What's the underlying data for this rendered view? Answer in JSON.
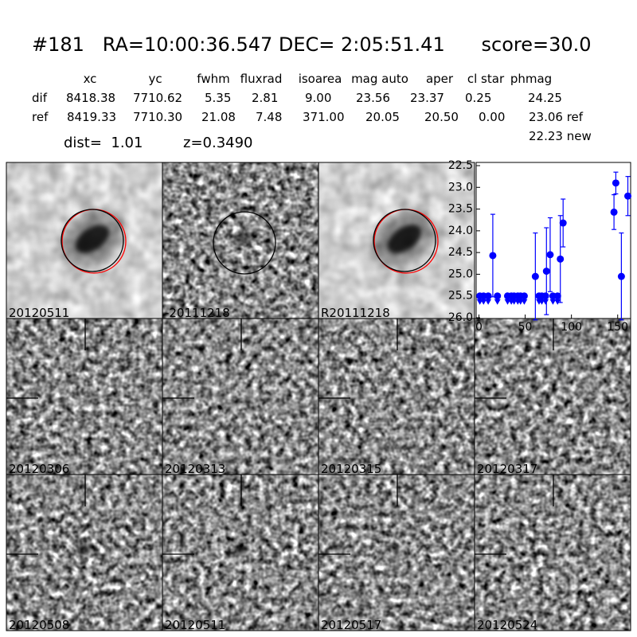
{
  "header": {
    "title": "#181   RA=10:00:36.547 DEC= 2:05:51.41      score=30.0"
  },
  "table": {
    "columns": [
      "xc",
      "yc",
      "fwhm",
      "fluxrad",
      "isoarea",
      "mag auto",
      "aper",
      "cl star",
      "phmag"
    ],
    "rows": [
      [
        "dif",
        "8418.38",
        "7710.62",
        "5.35",
        "2.81",
        "9.00",
        "23.56",
        "23.37",
        "0.25",
        "24.25"
      ],
      [
        "ref",
        "8419.33",
        "7710.30",
        "21.08",
        "7.48",
        "371.00",
        "20.05",
        "20.50",
        "0.00",
        "23.06 ref"
      ]
    ],
    "note": "22.23 new"
  },
  "info": {
    "dist": "dist=  1.01",
    "z": "z=0.3490"
  },
  "panels": [
    {
      "label": "20120511"
    },
    {
      "label": "-20111218"
    },
    {
      "label": "R20111218"
    },
    {
      "label": "20120306"
    },
    {
      "label": "20120313"
    },
    {
      "label": "20120315"
    },
    {
      "label": "20120317"
    },
    {
      "label": "20120508"
    },
    {
      "label": "20120511",
      "color": "#ff0000"
    },
    {
      "label": "20120517"
    },
    {
      "label": "20120524"
    }
  ],
  "chart_data": {
    "type": "scatter",
    "color": "#0000ff",
    "xlim": [
      -3,
      164
    ],
    "ylim": [
      26.0,
      22.5
    ],
    "xticks": [
      0,
      50,
      100,
      150
    ],
    "yticks": [
      22.5,
      {
        "value": 23,
        "label": "23.0"
      },
      23.5,
      {
        "value": 24,
        "label": "24.0"
      },
      24.5,
      {
        "value": 25,
        "label": "25.0"
      },
      25.5,
      {
        "value": 26,
        "label": "26.0"
      }
    ],
    "detections": {
      "x": [
        15,
        61,
        73,
        77,
        88,
        91,
        146,
        148,
        154,
        161
      ],
      "values": [
        24.57,
        25.05,
        24.93,
        24.55,
        24.65,
        23.82,
        23.57,
        22.9,
        25.05,
        23.2
      ],
      "errors": [
        0.95,
        1.0,
        1.0,
        0.85,
        1.0,
        0.55,
        0.4,
        0.25,
        1.0,
        0.45
      ]
    },
    "limits": {
      "x": [
        1,
        5,
        10,
        20,
        31,
        35,
        38,
        42,
        45,
        49,
        65,
        68,
        72,
        80,
        85
      ],
      "values": [
        25.5,
        25.5,
        25.5,
        25.5,
        25.5,
        25.5,
        25.5,
        25.5,
        25.5,
        25.5,
        25.5,
        25.5,
        25.5,
        25.5,
        25.5
      ]
    }
  }
}
